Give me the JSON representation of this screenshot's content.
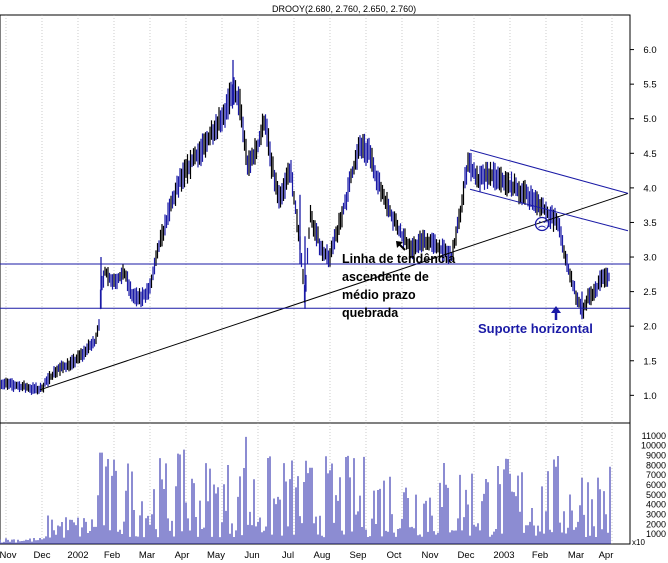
{
  "chart_data": {
    "type": "candlestick",
    "title": "DROOY(2.680, 2.760, 2.650, 2.760)",
    "price_axis": {
      "ylim": [
        0.6,
        6.5
      ],
      "ticks": [
        "6.0",
        "5.5",
        "5.0",
        "4.5",
        "4.0",
        "3.5",
        "3.0",
        "2.5",
        "2.0",
        "1.5",
        "1.0"
      ]
    },
    "volume_axis": {
      "ylim": [
        0,
        11500
      ],
      "ticks": [
        "11000",
        "10000",
        "9000",
        "8000",
        "7000",
        "6000",
        "5000",
        "4000",
        "3000",
        "2000",
        "1000"
      ],
      "multiplier_label": "x10"
    },
    "x_labels": [
      "Nov",
      "Dec",
      "2002",
      "Feb",
      "Mar",
      "Apr",
      "May",
      "Jun",
      "Jul",
      "Aug",
      "Sep",
      "Oct",
      "Nov",
      "Dec",
      "2003",
      "Feb",
      "Mar",
      "Apr"
    ],
    "price_path": [
      {
        "t": 0,
        "p": 1.18
      },
      {
        "t": 40,
        "p": 1.08
      },
      {
        "t": 55,
        "p": 1.35
      },
      {
        "t": 75,
        "p": 1.5
      },
      {
        "t": 95,
        "p": 1.78
      },
      {
        "t": 99,
        "p": 2.05
      },
      {
        "t": 101,
        "p": 2.5
      },
      {
        "t": 105,
        "p": 2.8
      },
      {
        "t": 112,
        "p": 2.65
      },
      {
        "t": 125,
        "p": 2.75
      },
      {
        "t": 132,
        "p": 2.45
      },
      {
        "t": 140,
        "p": 2.4
      },
      {
        "t": 150,
        "p": 2.55
      },
      {
        "t": 160,
        "p": 3.2
      },
      {
        "t": 170,
        "p": 3.7
      },
      {
        "t": 180,
        "p": 4.1
      },
      {
        "t": 195,
        "p": 4.45
      },
      {
        "t": 205,
        "p": 4.6
      },
      {
        "t": 215,
        "p": 4.9
      },
      {
        "t": 225,
        "p": 5.1
      },
      {
        "t": 233,
        "p": 5.4
      },
      {
        "t": 240,
        "p": 5.2
      },
      {
        "t": 248,
        "p": 4.3
      },
      {
        "t": 258,
        "p": 4.6
      },
      {
        "t": 265,
        "p": 5.0
      },
      {
        "t": 272,
        "p": 4.3
      },
      {
        "t": 280,
        "p": 3.8
      },
      {
        "t": 290,
        "p": 4.3
      },
      {
        "t": 300,
        "p": 3.2
      },
      {
        "t": 305,
        "p": 2.4
      },
      {
        "t": 310,
        "p": 3.6
      },
      {
        "t": 322,
        "p": 3.1
      },
      {
        "t": 330,
        "p": 3.0
      },
      {
        "t": 342,
        "p": 3.6
      },
      {
        "t": 352,
        "p": 4.2
      },
      {
        "t": 360,
        "p": 4.6
      },
      {
        "t": 370,
        "p": 4.5
      },
      {
        "t": 380,
        "p": 4.0
      },
      {
        "t": 392,
        "p": 3.6
      },
      {
        "t": 402,
        "p": 3.3
      },
      {
        "t": 412,
        "p": 3.1
      },
      {
        "t": 422,
        "p": 3.25
      },
      {
        "t": 432,
        "p": 3.2
      },
      {
        "t": 442,
        "p": 3.1
      },
      {
        "t": 452,
        "p": 3.0
      },
      {
        "t": 460,
        "p": 3.6
      },
      {
        "t": 468,
        "p": 4.4
      },
      {
        "t": 478,
        "p": 4.1
      },
      {
        "t": 490,
        "p": 4.2
      },
      {
        "t": 502,
        "p": 4.1
      },
      {
        "t": 515,
        "p": 4.0
      },
      {
        "t": 528,
        "p": 3.9
      },
      {
        "t": 540,
        "p": 3.75
      },
      {
        "t": 550,
        "p": 3.6
      },
      {
        "t": 558,
        "p": 3.5
      },
      {
        "t": 565,
        "p": 3.0
      },
      {
        "t": 570,
        "p": 2.75
      },
      {
        "t": 577,
        "p": 2.4
      },
      {
        "t": 582,
        "p": 2.2
      },
      {
        "t": 588,
        "p": 2.4
      },
      {
        "t": 595,
        "p": 2.5
      },
      {
        "t": 601,
        "p": 2.7
      },
      {
        "t": 610,
        "p": 2.72
      }
    ],
    "trendlines": [
      {
        "from": {
          "t": 40,
          "p": 1.08
        },
        "to": {
          "t": 628,
          "p": 3.92
        }
      },
      {
        "from": {
          "t": 470,
          "p": 4.55
        },
        "to": {
          "t": 628,
          "p": 3.92
        }
      },
      {
        "from": {
          "t": 470,
          "p": 3.98
        },
        "to": {
          "t": 628,
          "p": 3.38
        }
      }
    ],
    "horizontal_lines": [
      2.9,
      2.26
    ],
    "annotations": {
      "trend_text": [
        "Linha de tendência",
        "ascendente de",
        "médio prazo",
        "quebrada"
      ],
      "support_text": "Suporte horizontal",
      "sad_face": "☹"
    }
  }
}
